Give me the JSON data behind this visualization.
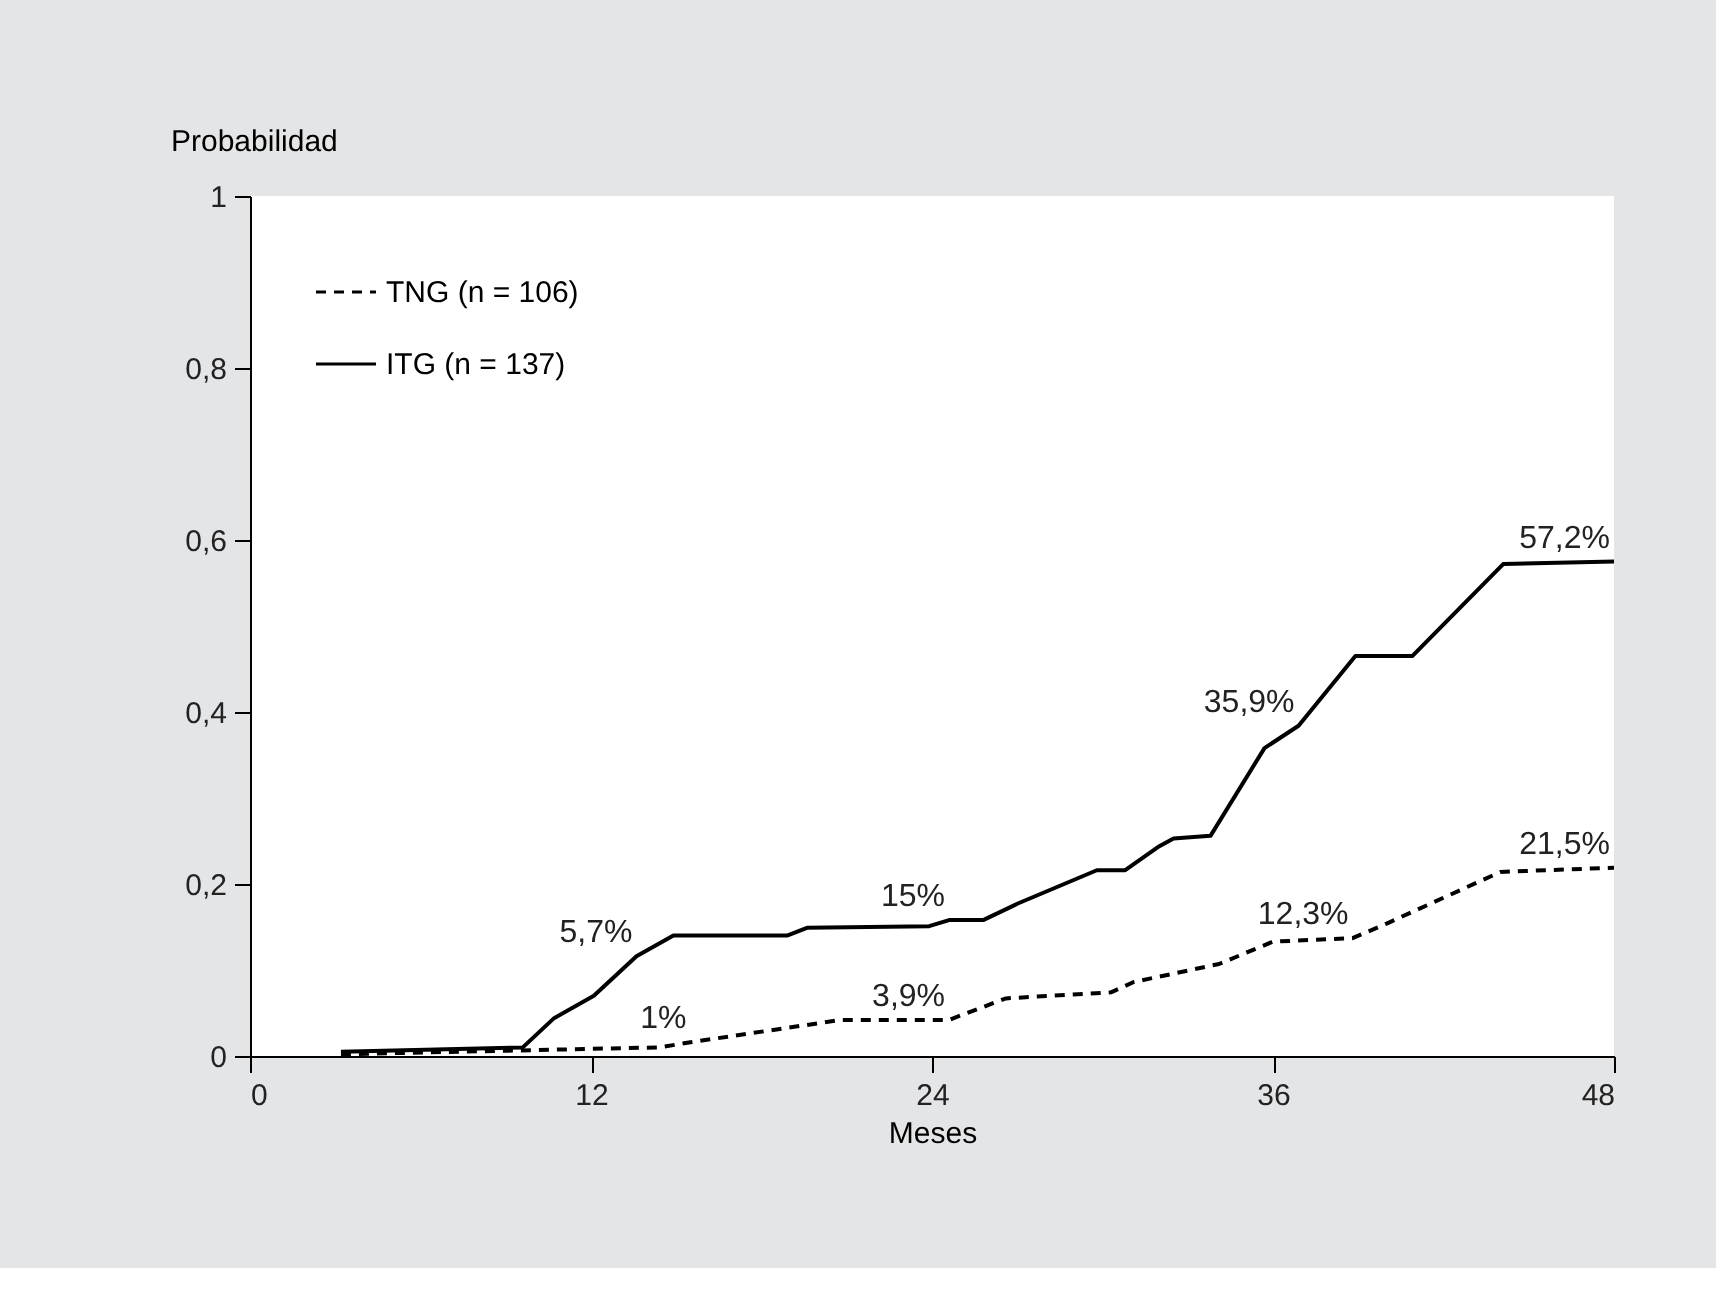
{
  "chart_data": {
    "type": "line",
    "xlabel": "Meses",
    "ylabel": "Probabilidad",
    "xlim": [
      0,
      48
    ],
    "xticks": [
      0,
      12,
      24,
      36,
      48
    ],
    "ylim": [
      0,
      1
    ],
    "yticks": [
      0,
      {
        "value": 0.2,
        "label": "0,2"
      },
      {
        "value": 0.4,
        "label": "0,4"
      },
      {
        "value": 0.6,
        "label": "0,6"
      },
      {
        "value": 0.8,
        "label": "0,8"
      },
      1
    ],
    "grid": false,
    "legend": "top left",
    "marker": "none",
    "series": [
      {
        "name": "TNG (n = 106)",
        "color": "#000000",
        "line_style": "dashed",
        "x": [
          3.2,
          14.4,
          15.5,
          20.8,
          23.6,
          24.6,
          26.6,
          30.3,
          31.1,
          34.1,
          36.0,
          38.8,
          40.0,
          44.0,
          48
        ],
        "values": [
          0.002,
          0.01,
          0.016,
          0.042,
          0.042,
          0.042,
          0.067,
          0.074,
          0.086,
          0.107,
          0.133,
          0.137,
          0.154,
          0.214,
          0.219
        ]
      },
      {
        "name": "ITG (n = 137)",
        "color": "#000000",
        "line_style": "solid",
        "x": [
          3.2,
          9.6,
          10.7,
          12.1,
          13.6,
          14.9,
          18.9,
          19.6,
          23.9,
          24.6,
          25.8,
          27.0,
          29.8,
          30.8,
          32.0,
          32.5,
          33.8,
          35.7,
          36.9,
          38.9,
          40.9,
          44.1,
          48
        ],
        "values": [
          0.005,
          0.01,
          0.044,
          0.07,
          0.116,
          0.14,
          0.14,
          0.149,
          0.151,
          0.158,
          0.158,
          0.177,
          0.216,
          0.216,
          0.244,
          0.253,
          0.256,
          0.358,
          0.384,
          0.465,
          0.465,
          0.572,
          0.575
        ]
      }
    ],
    "annotations": [
      {
        "text": "5,7%",
        "x": 13.6,
        "y": 0.116
      },
      {
        "text": "1%",
        "x": 15.5,
        "y": 0.016
      },
      {
        "text": "15%",
        "x": 24.6,
        "y": 0.158
      },
      {
        "text": "3,9%",
        "x": 24.6,
        "y": 0.042
      },
      {
        "text": "35,9%",
        "x": 36.9,
        "y": 0.384
      },
      {
        "text": "12,3%",
        "x": 38.8,
        "y": 0.137
      },
      {
        "text": "57,2%",
        "x": 48,
        "y": 0.575
      },
      {
        "text": "21,5%",
        "x": 48,
        "y": 0.219
      }
    ]
  }
}
